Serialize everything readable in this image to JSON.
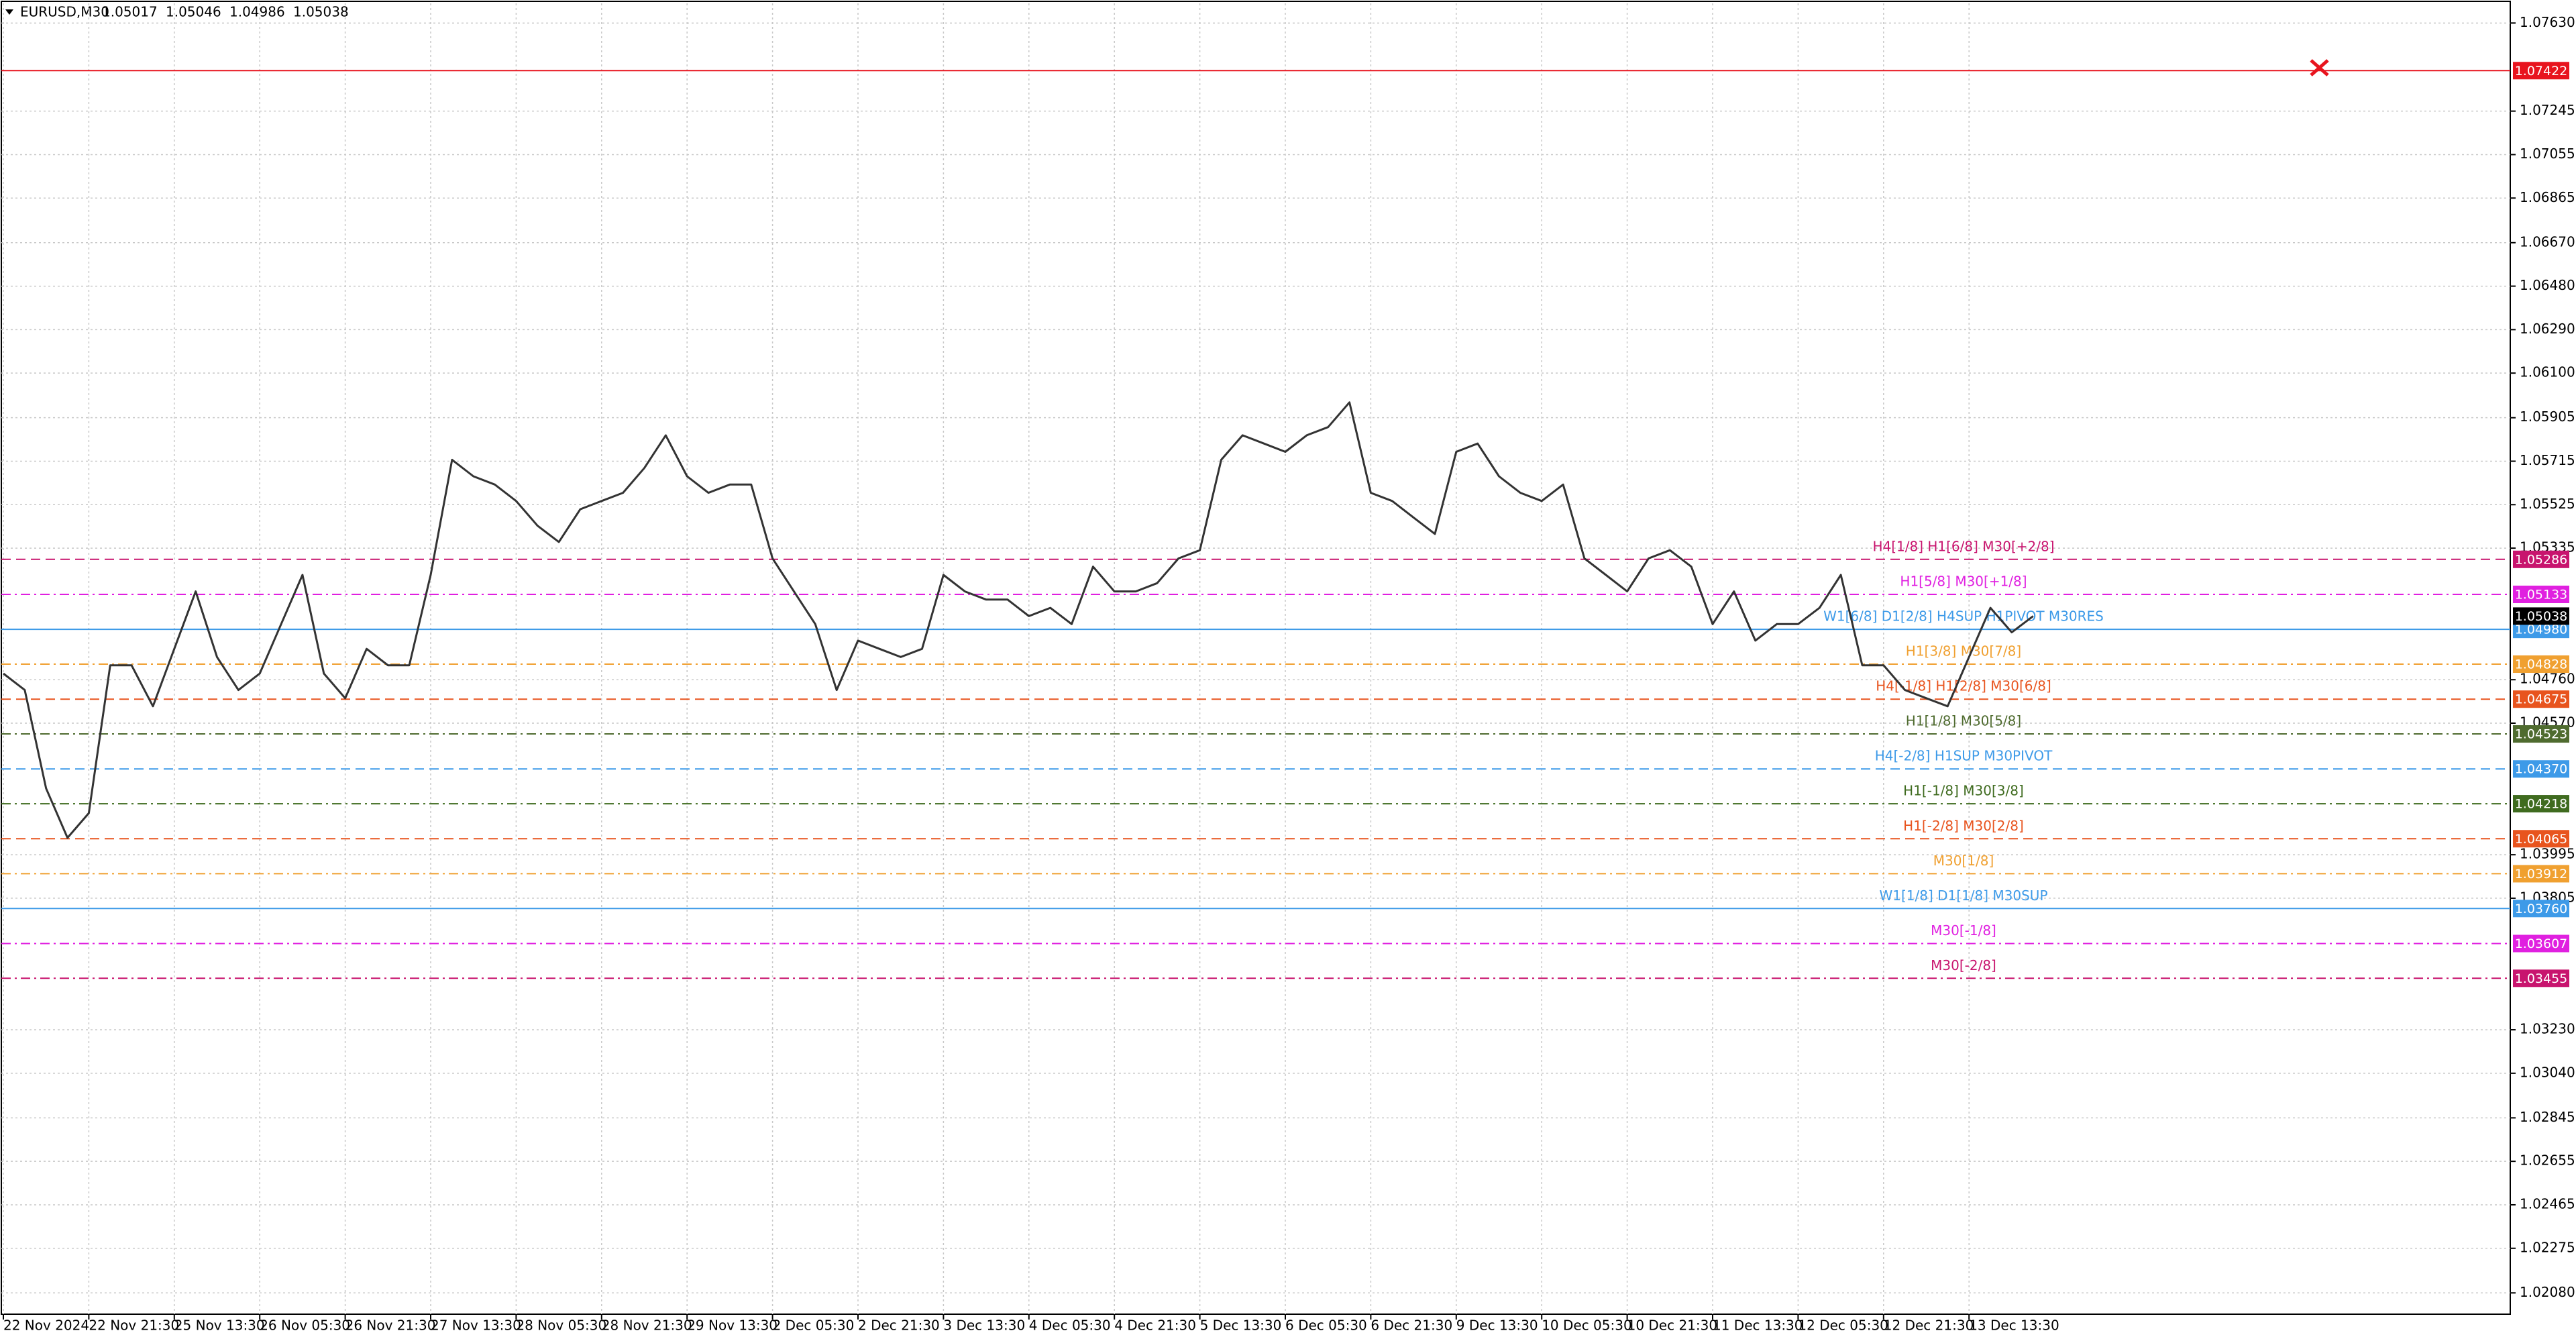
{
  "chart_data": {
    "type": "line",
    "symbol": "EURUSD,M30",
    "ohlc": [
      1.05017,
      1.05046,
      1.04986,
      1.05038
    ],
    "current_price": 1.05038,
    "grid": true,
    "ylim": [
      1.01987,
      1.07716
    ],
    "yticks": [
      {
        "value": 1.0763,
        "label": "1.07630"
      },
      1.07245,
      1.07055,
      1.06865,
      {
        "value": 1.0667,
        "label": "1.06670"
      },
      {
        "value": 1.0648,
        "label": "1.06480"
      },
      {
        "value": 1.0629,
        "label": "1.06290"
      },
      {
        "value": 1.061,
        "label": "1.06100"
      },
      1.05905,
      1.05715,
      1.05525,
      1.05335,
      {
        "value": 1.0476,
        "label": "1.04760"
      },
      {
        "value": 1.0457,
        "label": "1.04570"
      },
      1.03995,
      1.03805,
      {
        "value": 1.0323,
        "label": "1.03230"
      },
      {
        "value": 1.0304,
        "label": "1.03040"
      },
      1.02845,
      1.02655,
      1.02465,
      1.02275,
      {
        "value": 1.0208,
        "label": "1.02080"
      }
    ],
    "categories": [
      "22 Nov 2024",
      null,
      null,
      null,
      "22 Nov 21:30",
      null,
      null,
      null,
      "25 Nov 13:30",
      null,
      null,
      null,
      "26 Nov 05:30",
      null,
      null,
      null,
      "26 Nov 21:30",
      null,
      null,
      null,
      "27 Nov 13:30",
      null,
      null,
      null,
      "28 Nov 05:30",
      null,
      null,
      null,
      "28 Nov 21:30",
      null,
      null,
      null,
      "29 Nov 13:30",
      null,
      null,
      null,
      "2 Dec 05:30",
      null,
      null,
      null,
      "2 Dec 21:30",
      null,
      null,
      null,
      "3 Dec 13:30",
      null,
      null,
      null,
      "4 Dec 05:30",
      null,
      null,
      null,
      "4 Dec 21:30",
      null,
      null,
      null,
      "5 Dec 13:30",
      null,
      null,
      null,
      "6 Dec 05:30",
      null,
      null,
      null,
      "6 Dec 21:30",
      null,
      null,
      null,
      "9 Dec 13:30",
      null,
      null,
      null,
      "10 Dec 05:30",
      null,
      null,
      null,
      "10 Dec 21:30",
      null,
      null,
      null,
      "11 Dec 13:30",
      null,
      null,
      null,
      "12 Dec 05:30",
      null,
      null,
      null,
      "12 Dec 21:30",
      null,
      null,
      null,
      "13 Dec 13:30",
      null,
      null,
      null
    ],
    "series": [
      {
        "color": "#333333",
        "values": [
          1.04787,
          1.04715,
          1.04285,
          1.04069,
          1.04177,
          1.04823,
          1.04823,
          1.04644,
          1.04895,
          1.05146,
          1.04859,
          1.04715,
          1.04787,
          1.05003,
          1.05218,
          1.04787,
          1.04679,
          1.04895,
          1.04823,
          1.04823,
          1.05218,
          1.05721,
          1.05649,
          1.05613,
          1.05541,
          1.05433,
          1.05362,
          1.05505,
          1.05541,
          1.05577,
          1.05685,
          1.05828,
          1.05649,
          1.05577,
          1.05613,
          1.05613,
          1.0529,
          1.05146,
          1.05003,
          1.04715,
          1.04931,
          1.04895,
          1.04859,
          1.04895,
          1.05218,
          1.05146,
          1.0511,
          1.0511,
          1.05038,
          1.05074,
          1.05003,
          1.05254,
          1.05146,
          1.05146,
          1.05182,
          1.0529,
          1.05326,
          1.05721,
          1.05828,
          1.05792,
          1.05756,
          1.05828,
          1.05864,
          1.05972,
          1.05577,
          1.05541,
          1.05469,
          1.05397,
          1.05756,
          1.05792,
          1.05649,
          1.05577,
          1.05541,
          1.05613,
          1.0529,
          1.05218,
          1.05146,
          1.0529,
          1.05326,
          1.05254,
          1.05003,
          1.05146,
          1.04931,
          1.05003,
          1.05003,
          1.05074,
          1.05218,
          1.04823,
          1.04823,
          1.04715,
          1.04679,
          1.04644,
          1.04859,
          1.05074,
          1.04967,
          1.05038
        ]
      }
    ],
    "levels": [
      {
        "value": 1.07422,
        "color": "#e8141e",
        "style": "solid"
      },
      {
        "value": 1.05286,
        "color": "#c8146e",
        "style": "dash",
        "label": "H4[1/8] H1[6/8] M30[+2/8]"
      },
      {
        "value": 1.05133,
        "color": "#e020e0",
        "style": "dashdot",
        "label": "H1[5/8] M30[+1/8]"
      },
      {
        "value": 1.0498,
        "value_label": "1.04980",
        "color": "#3d9ae8",
        "style": "solid",
        "label": "W1[6/8] D1[2/8] H4SUP H1PIVOT M30RES"
      },
      {
        "value": 1.04828,
        "color": "#f0a030",
        "style": "dashdot",
        "label": "H1[3/8] M30[7/8]"
      },
      {
        "value": 1.04675,
        "color": "#e8541e",
        "style": "dash",
        "label": "H4[-1/8] H1[2/8] M30[6/8]"
      },
      {
        "value": 1.04523,
        "color": "#4f6b2f",
        "style": "dashdot",
        "label": "H1[1/8] M30[5/8]"
      },
      {
        "value": 1.0437,
        "value_label": "1.04370",
        "color": "#3d9ae8",
        "style": "dash",
        "label": "H4[-2/8] H1SUP M30PIVOT"
      },
      {
        "value": 1.04218,
        "color": "#3f6b1f",
        "style": "dashdot",
        "label": "H1[-1/8] M30[3/8]"
      },
      {
        "value": 1.04065,
        "color": "#e8541e",
        "style": "dash",
        "label": "H1[-2/8] M30[2/8]"
      },
      {
        "value": 1.03912,
        "color": "#f0a030",
        "style": "dashdot",
        "label": "M30[1/8]"
      },
      {
        "value": 1.0376,
        "value_label": "1.03760",
        "color": "#3d9ae8",
        "style": "solid",
        "label": "W1[1/8] D1[1/8] M30SUP"
      },
      {
        "value": 1.03607,
        "color": "#e020e0",
        "style": "dashdot",
        "label": "M30[-1/8]"
      },
      {
        "value": 1.03455,
        "color": "#c8146e",
        "style": "dashdot",
        "label": "M30[-2/8]"
      }
    ]
  }
}
